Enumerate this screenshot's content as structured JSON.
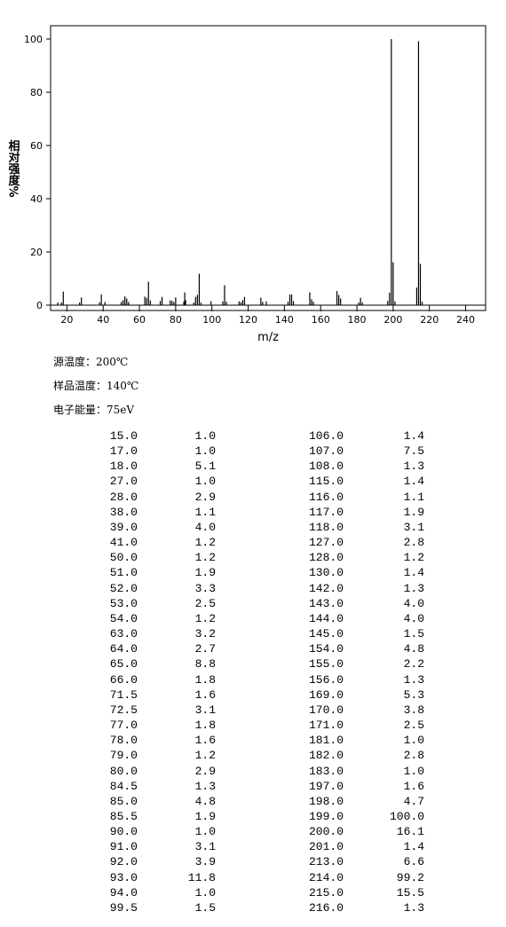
{
  "chart_data": {
    "type": "stick",
    "x_label": "m/z",
    "y_label": "相对强度%",
    "x": [
      15,
      17,
      18,
      27,
      28,
      38,
      39,
      41,
      50,
      51,
      52,
      53,
      54,
      63,
      64,
      65,
      66,
      71.5,
      72.5,
      77,
      78,
      79,
      80,
      84.5,
      85,
      85.5,
      90,
      91,
      92,
      93,
      94,
      99.5,
      106,
      107,
      108,
      115,
      116,
      117,
      118,
      127,
      128,
      130,
      142,
      143,
      144,
      145,
      154,
      155,
      156,
      169,
      170,
      171,
      181,
      182,
      183,
      197,
      198,
      199,
      200,
      201,
      213,
      214,
      215,
      216
    ],
    "values": [
      1.0,
      1.0,
      5.1,
      1.0,
      2.9,
      1.1,
      4.0,
      1.2,
      1.2,
      1.9,
      3.3,
      2.5,
      1.2,
      3.2,
      2.7,
      8.8,
      1.8,
      1.6,
      3.1,
      1.8,
      1.6,
      1.2,
      2.9,
      1.3,
      4.8,
      1.9,
      1.0,
      3.1,
      3.9,
      11.8,
      1.0,
      1.5,
      1.4,
      7.5,
      1.3,
      1.4,
      1.1,
      1.9,
      3.1,
      2.8,
      1.2,
      1.4,
      1.3,
      4.0,
      4.0,
      1.5,
      4.8,
      2.2,
      1.3,
      5.3,
      3.8,
      2.5,
      1.0,
      2.8,
      1.0,
      1.6,
      4.7,
      100.0,
      16.1,
      1.4,
      6.6,
      99.2,
      15.5,
      1.3
    ],
    "color": "#000000",
    "xlim": [
      11,
      251
    ],
    "xticks": [
      20,
      40,
      60,
      80,
      100,
      120,
      140,
      160,
      180,
      200,
      220,
      240
    ],
    "ylim": [
      -2,
      105
    ],
    "yticks": [
      0,
      20,
      40,
      60,
      80,
      100
    ]
  },
  "info": [
    "源温度：200℃",
    "样品温度：140℃",
    "电子能量：75eV"
  ],
  "table": {
    "rows": [
      [
        "15.0",
        "1.0",
        "106.0",
        "1.4"
      ],
      [
        "17.0",
        "1.0",
        "107.0",
        "7.5"
      ],
      [
        "18.0",
        "5.1",
        "108.0",
        "1.3"
      ],
      [
        "27.0",
        "1.0",
        "115.0",
        "1.4"
      ],
      [
        "28.0",
        "2.9",
        "116.0",
        "1.1"
      ],
      [
        "38.0",
        "1.1",
        "117.0",
        "1.9"
      ],
      [
        "39.0",
        "4.0",
        "118.0",
        "3.1"
      ],
      [
        "41.0",
        "1.2",
        "127.0",
        "2.8"
      ],
      [
        "50.0",
        "1.2",
        "128.0",
        "1.2"
      ],
      [
        "51.0",
        "1.9",
        "130.0",
        "1.4"
      ],
      [
        "52.0",
        "3.3",
        "142.0",
        "1.3"
      ],
      [
        "53.0",
        "2.5",
        "143.0",
        "4.0"
      ],
      [
        "54.0",
        "1.2",
        "144.0",
        "4.0"
      ],
      [
        "63.0",
        "3.2",
        "145.0",
        "1.5"
      ],
      [
        "64.0",
        "2.7",
        "154.0",
        "4.8"
      ],
      [
        "65.0",
        "8.8",
        "155.0",
        "2.2"
      ],
      [
        "66.0",
        "1.8",
        "156.0",
        "1.3"
      ],
      [
        "71.5",
        "1.6",
        "169.0",
        "5.3"
      ],
      [
        "72.5",
        "3.1",
        "170.0",
        "3.8"
      ],
      [
        "77.0",
        "1.8",
        "171.0",
        "2.5"
      ],
      [
        "78.0",
        "1.6",
        "181.0",
        "1.0"
      ],
      [
        "79.0",
        "1.2",
        "182.0",
        "2.8"
      ],
      [
        "80.0",
        "2.9",
        "183.0",
        "1.0"
      ],
      [
        "84.5",
        "1.3",
        "197.0",
        "1.6"
      ],
      [
        "85.0",
        "4.8",
        "198.0",
        "4.7"
      ],
      [
        "85.5",
        "1.9",
        "199.0",
        "100.0"
      ],
      [
        "90.0",
        "1.0",
        "200.0",
        "16.1"
      ],
      [
        "91.0",
        "3.1",
        "201.0",
        "1.4"
      ],
      [
        "92.0",
        "3.9",
        "213.0",
        "6.6"
      ],
      [
        "93.0",
        "11.8",
        "214.0",
        "99.2"
      ],
      [
        "94.0",
        "1.0",
        "215.0",
        "15.5"
      ],
      [
        "99.5",
        "1.5",
        "216.0",
        "1.3"
      ]
    ]
  }
}
